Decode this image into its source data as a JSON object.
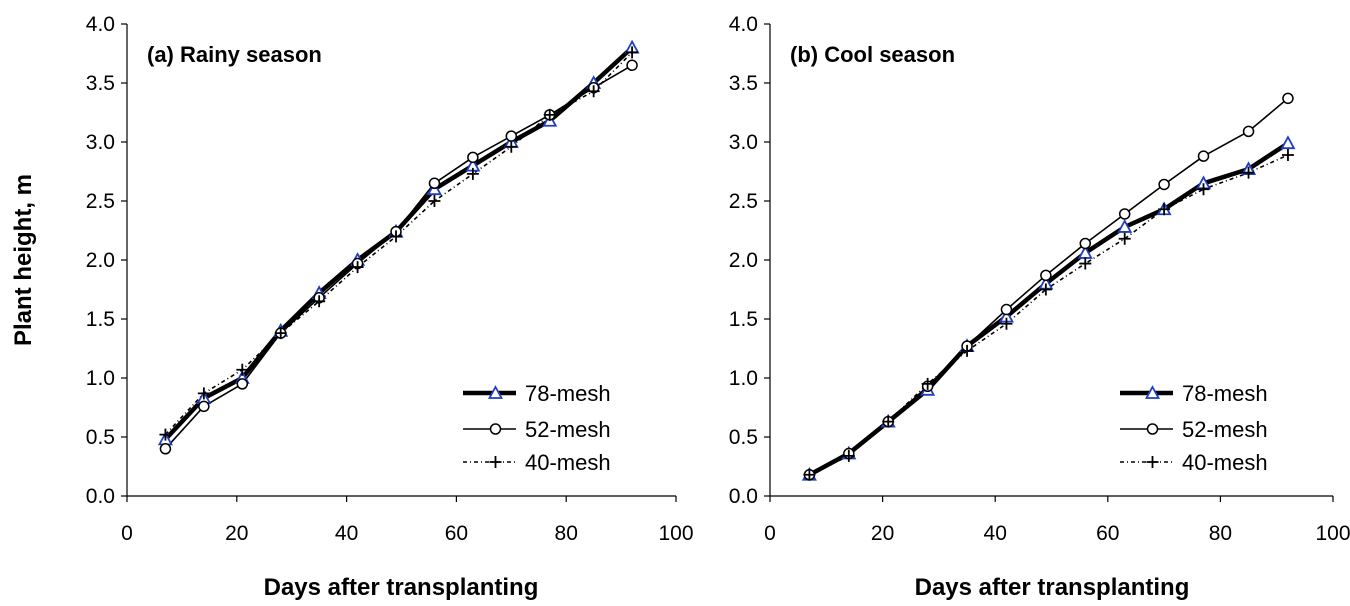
{
  "ylabel": "Plant height, m",
  "colors": {
    "line": "#000000",
    "triangle_marker": "#1f3fbf",
    "background": "#ffffff"
  },
  "chart_data": [
    {
      "type": "line",
      "title": "(a) Rainy season",
      "xlabel": "Days after transplanting",
      "ylabel": "Plant height, m",
      "xlim": [
        0,
        100
      ],
      "ylim": [
        0,
        4
      ],
      "x_ticks": [
        "0",
        "20",
        "40",
        "60",
        "80",
        "100"
      ],
      "y_ticks": [
        "0.0",
        "0.5",
        "1.0",
        "1.5",
        "2.0",
        "2.5",
        "3.0",
        "3.5",
        "4.0"
      ],
      "grid": false,
      "legend": "bottom-right",
      "x": [
        7,
        14,
        21,
        28,
        35,
        42,
        49,
        56,
        63,
        70,
        77,
        85,
        92
      ],
      "series": [
        {
          "name": "78-mesh",
          "style": "thick-solid",
          "marker": "triangle",
          "values": [
            0.48,
            0.83,
            1.0,
            1.4,
            1.72,
            2.0,
            2.24,
            2.6,
            2.8,
            3.0,
            3.18,
            3.5,
            3.8
          ]
        },
        {
          "name": "52-mesh",
          "style": "thin-solid",
          "marker": "circle",
          "values": [
            0.4,
            0.76,
            0.95,
            1.38,
            1.68,
            1.97,
            2.24,
            2.65,
            2.87,
            3.05,
            3.23,
            3.46,
            3.65
          ]
        },
        {
          "name": "40-mesh",
          "style": "dash-dot",
          "marker": "plus",
          "values": [
            0.52,
            0.87,
            1.07,
            1.38,
            1.65,
            1.94,
            2.2,
            2.5,
            2.73,
            2.96,
            3.23,
            3.43,
            3.76
          ]
        }
      ]
    },
    {
      "type": "line",
      "title": "(b) Cool season",
      "xlabel": "Days after transplanting",
      "ylabel": "",
      "xlim": [
        0,
        100
      ],
      "ylim": [
        0,
        4
      ],
      "x_ticks": [
        "0",
        "20",
        "40",
        "60",
        "80",
        "100"
      ],
      "y_ticks": [
        "0.0",
        "0.5",
        "1.0",
        "1.5",
        "2.0",
        "2.5",
        "3.0",
        "3.5",
        "4.0"
      ],
      "grid": false,
      "legend": "bottom-right",
      "x": [
        7,
        14,
        21,
        28,
        35,
        42,
        49,
        56,
        63,
        70,
        77,
        85,
        92
      ],
      "series": [
        {
          "name": "78-mesh",
          "style": "thick-solid",
          "marker": "triangle",
          "values": [
            0.18,
            0.36,
            0.63,
            0.9,
            1.27,
            1.52,
            1.8,
            2.06,
            2.28,
            2.43,
            2.65,
            2.77,
            2.99
          ]
        },
        {
          "name": "52-mesh",
          "style": "thin-solid",
          "marker": "circle",
          "values": [
            0.18,
            0.36,
            0.63,
            0.93,
            1.27,
            1.58,
            1.87,
            2.14,
            2.39,
            2.64,
            2.88,
            3.09,
            3.37
          ]
        },
        {
          "name": "40-mesh",
          "style": "dash-dot",
          "marker": "plus",
          "values": [
            0.18,
            0.34,
            0.63,
            0.95,
            1.23,
            1.46,
            1.75,
            1.97,
            2.18,
            2.43,
            2.6,
            2.74,
            2.89
          ]
        }
      ]
    }
  ]
}
